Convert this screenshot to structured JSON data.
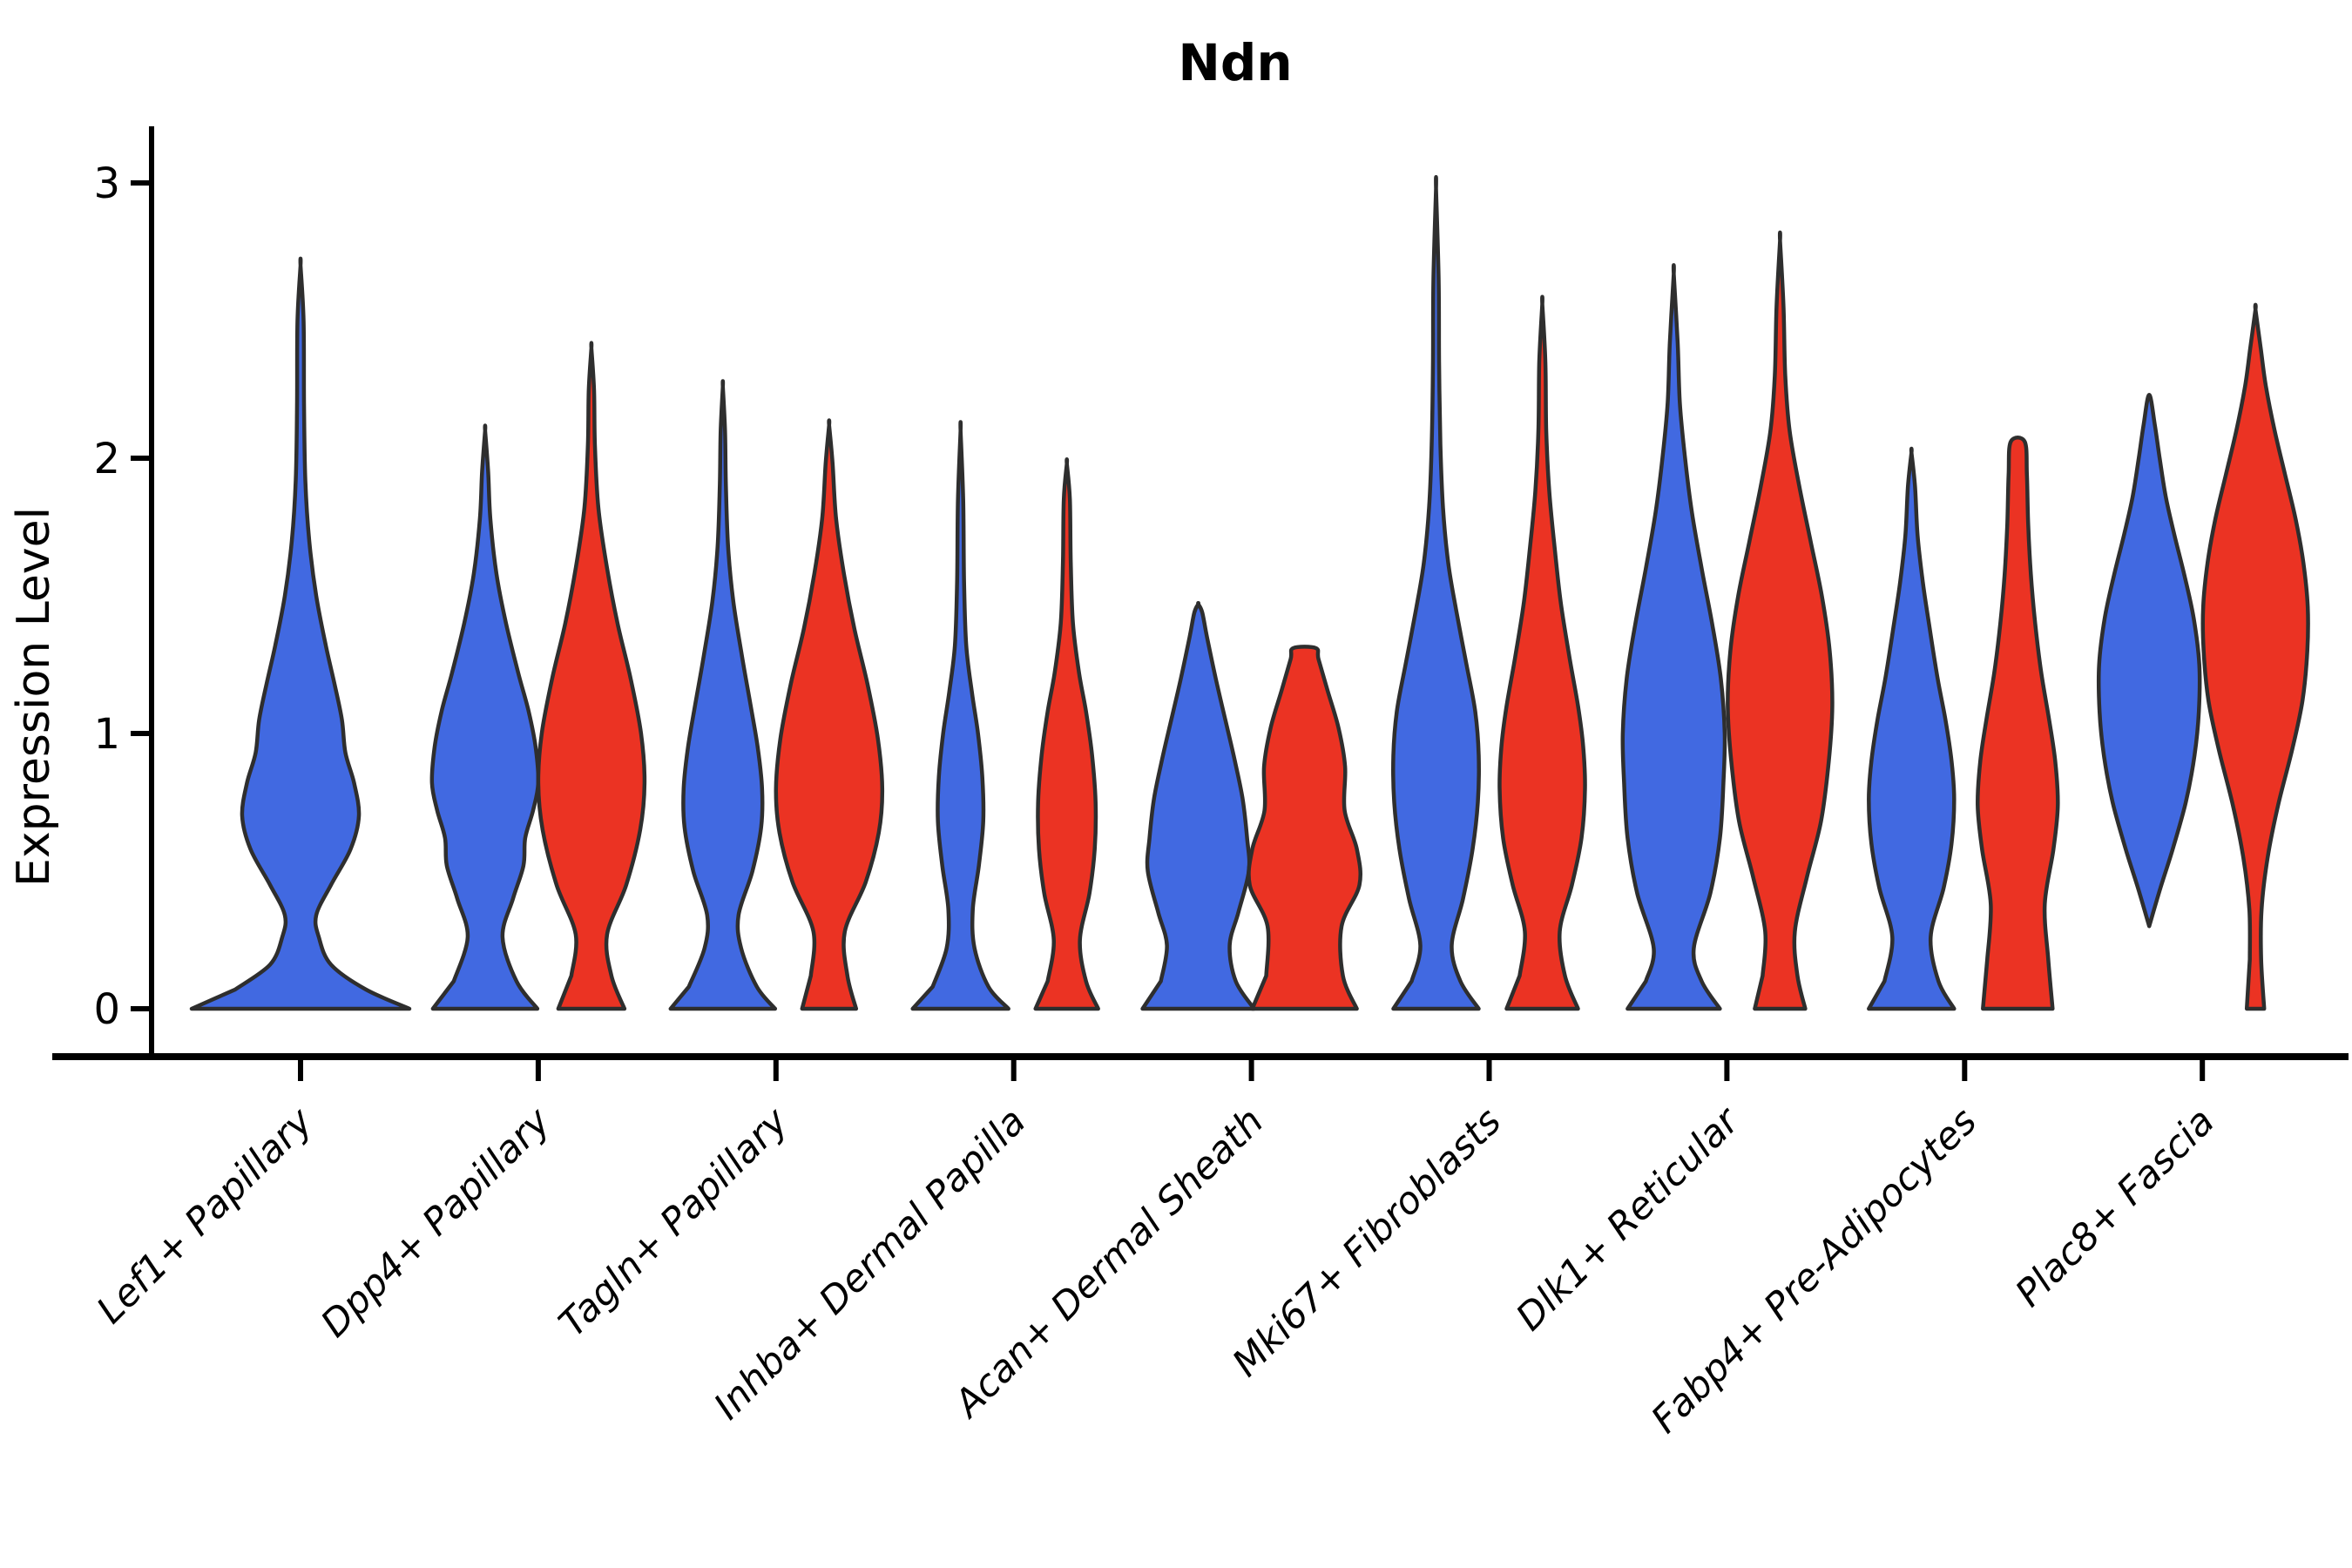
{
  "title": "Ndn",
  "y_axis": {
    "label": "Expression Level",
    "ticks": [
      {
        "value": 0,
        "label": "0"
      },
      {
        "value": 1,
        "label": "1"
      },
      {
        "value": 2,
        "label": "2"
      },
      {
        "value": 3,
        "label": "3"
      }
    ]
  },
  "colors": {
    "blue": "#4169E1",
    "red": "#EB3323",
    "outline": "#2E2E2E",
    "axis": "#000000"
  },
  "chart_data": {
    "type": "violin",
    "title": "Ndn",
    "xlabel": "",
    "ylabel": "Expression Level",
    "ylim": [
      -0.17,
      3.25
    ],
    "grid": false,
    "legend": "none",
    "split_violins": true,
    "categories": [
      "Lef1+ Papillary",
      "Dpp4+ Papillary",
      "Tagln+ Papillary",
      "Inhba+ Dermal Papilla",
      "Acan+ Dermal Sheath",
      "Mki67+ Fibroblasts",
      "Dlk1+ Reticular",
      "Fabp4+ Pre-Adipocytes",
      "Plac8+ Fascia"
    ],
    "violins": [
      {
        "category_index": 0,
        "side": "single",
        "color": "blue",
        "min_expression": 0,
        "max_expression": 2.7,
        "profile": [
          [
            0,
            250
          ],
          [
            0.07,
            150
          ],
          [
            0.16,
            70
          ],
          [
            0.26,
            42
          ],
          [
            0.34,
            36
          ],
          [
            0.45,
            70
          ],
          [
            0.58,
            115
          ],
          [
            0.7,
            134
          ],
          [
            0.82,
            123
          ],
          [
            0.93,
            103
          ],
          [
            1.05,
            95
          ],
          [
            1.18,
            78
          ],
          [
            1.32,
            58
          ],
          [
            1.5,
            36
          ],
          [
            1.7,
            20
          ],
          [
            1.92,
            11
          ],
          [
            2.2,
            8
          ],
          [
            2.5,
            7
          ],
          [
            2.7,
            0
          ]
        ]
      },
      {
        "category_index": 1,
        "side": "left",
        "color": "blue",
        "min_expression": 0,
        "max_expression": 2.1,
        "profile": [
          [
            0,
            120
          ],
          [
            0.1,
            72
          ],
          [
            0.26,
            40
          ],
          [
            0.4,
            64
          ],
          [
            0.52,
            88
          ],
          [
            0.62,
            92
          ],
          [
            0.72,
            110
          ],
          [
            0.82,
            122
          ],
          [
            0.95,
            116
          ],
          [
            1.08,
            100
          ],
          [
            1.22,
            76
          ],
          [
            1.4,
            48
          ],
          [
            1.58,
            26
          ],
          [
            1.78,
            12
          ],
          [
            1.95,
            7
          ],
          [
            2.1,
            0
          ]
        ]
      },
      {
        "category_index": 1,
        "side": "right",
        "color": "red",
        "min_expression": 0,
        "max_expression": 2.4,
        "profile": [
          [
            0,
            76
          ],
          [
            0.12,
            46
          ],
          [
            0.27,
            36
          ],
          [
            0.45,
            80
          ],
          [
            0.65,
            112
          ],
          [
            0.82,
            122
          ],
          [
            1.0,
            114
          ],
          [
            1.2,
            90
          ],
          [
            1.4,
            60
          ],
          [
            1.6,
            36
          ],
          [
            1.82,
            16
          ],
          [
            2.05,
            8
          ],
          [
            2.25,
            6
          ],
          [
            2.4,
            0
          ]
        ]
      },
      {
        "category_index": 2,
        "side": "left",
        "color": "blue",
        "min_expression": 0,
        "max_expression": 2.26,
        "profile": [
          [
            0,
            120
          ],
          [
            0.08,
            78
          ],
          [
            0.22,
            42
          ],
          [
            0.34,
            36
          ],
          [
            0.5,
            68
          ],
          [
            0.66,
            88
          ],
          [
            0.8,
            90
          ],
          [
            0.95,
            80
          ],
          [
            1.1,
            64
          ],
          [
            1.28,
            44
          ],
          [
            1.48,
            24
          ],
          [
            1.68,
            12
          ],
          [
            1.9,
            7
          ],
          [
            2.1,
            5
          ],
          [
            2.26,
            0
          ]
        ]
      },
      {
        "category_index": 2,
        "side": "right",
        "color": "red",
        "min_expression": 0,
        "max_expression": 2.12,
        "profile": [
          [
            0,
            62
          ],
          [
            0.12,
            42
          ],
          [
            0.28,
            36
          ],
          [
            0.46,
            84
          ],
          [
            0.64,
            114
          ],
          [
            0.8,
            122
          ],
          [
            0.98,
            112
          ],
          [
            1.18,
            88
          ],
          [
            1.38,
            58
          ],
          [
            1.58,
            34
          ],
          [
            1.78,
            16
          ],
          [
            1.98,
            8
          ],
          [
            2.12,
            0
          ]
        ]
      },
      {
        "category_index": 3,
        "side": "left",
        "color": "blue",
        "min_expression": 0,
        "max_expression": 2.1,
        "profile": [
          [
            0,
            110
          ],
          [
            0.08,
            64
          ],
          [
            0.22,
            32
          ],
          [
            0.36,
            28
          ],
          [
            0.52,
            42
          ],
          [
            0.68,
            52
          ],
          [
            0.84,
            50
          ],
          [
            1.0,
            40
          ],
          [
            1.15,
            26
          ],
          [
            1.32,
            13
          ],
          [
            1.55,
            8
          ],
          [
            1.85,
            6
          ],
          [
            2.1,
            0
          ]
        ]
      },
      {
        "category_index": 3,
        "side": "right",
        "color": "red",
        "min_expression": 0,
        "max_expression": 1.98,
        "profile": [
          [
            0,
            72
          ],
          [
            0.1,
            44
          ],
          [
            0.25,
            30
          ],
          [
            0.42,
            52
          ],
          [
            0.58,
            64
          ],
          [
            0.75,
            66
          ],
          [
            0.92,
            58
          ],
          [
            1.08,
            44
          ],
          [
            1.22,
            28
          ],
          [
            1.4,
            14
          ],
          [
            1.62,
            9
          ],
          [
            1.85,
            7
          ],
          [
            1.98,
            0
          ]
        ]
      },
      {
        "category_index": 4,
        "side": "left",
        "color": "blue",
        "min_expression": 0,
        "max_expression": 1.47,
        "profile": [
          [
            0,
            128
          ],
          [
            0.1,
            86
          ],
          [
            0.23,
            72
          ],
          [
            0.35,
            92
          ],
          [
            0.5,
            116
          ],
          [
            0.62,
            112
          ],
          [
            0.76,
            102
          ],
          [
            0.9,
            84
          ],
          [
            1.05,
            62
          ],
          [
            1.2,
            40
          ],
          [
            1.35,
            20
          ],
          [
            1.44,
            9
          ],
          [
            1.47,
            0
          ]
        ]
      },
      {
        "category_index": 4,
        "side": "right",
        "color": "red",
        "min_expression": 0,
        "max_expression": 1.31,
        "flat_top": true,
        "profile": [
          [
            0,
            120
          ],
          [
            0.12,
            88
          ],
          [
            0.3,
            85
          ],
          [
            0.45,
            126
          ],
          [
            0.58,
            120
          ],
          [
            0.72,
            92
          ],
          [
            0.88,
            93
          ],
          [
            1.02,
            78
          ],
          [
            1.16,
            52
          ],
          [
            1.27,
            32
          ],
          [
            1.31,
            26
          ]
        ]
      },
      {
        "category_index": 5,
        "side": "left",
        "color": "blue",
        "min_expression": 0,
        "max_expression": 2.98,
        "profile": [
          [
            0,
            98
          ],
          [
            0.1,
            56
          ],
          [
            0.23,
            36
          ],
          [
            0.4,
            62
          ],
          [
            0.58,
            84
          ],
          [
            0.75,
            96
          ],
          [
            0.92,
            98
          ],
          [
            1.08,
            90
          ],
          [
            1.25,
            70
          ],
          [
            1.45,
            46
          ],
          [
            1.62,
            28
          ],
          [
            1.82,
            16
          ],
          [
            2.05,
            10
          ],
          [
            2.35,
            7
          ],
          [
            2.65,
            6
          ],
          [
            2.98,
            0
          ]
        ]
      },
      {
        "category_index": 5,
        "side": "right",
        "color": "red",
        "min_expression": 0,
        "max_expression": 2.56,
        "profile": [
          [
            0,
            82
          ],
          [
            0.12,
            52
          ],
          [
            0.28,
            40
          ],
          [
            0.45,
            68
          ],
          [
            0.62,
            90
          ],
          [
            0.8,
            98
          ],
          [
            0.95,
            94
          ],
          [
            1.1,
            82
          ],
          [
            1.28,
            62
          ],
          [
            1.48,
            42
          ],
          [
            1.68,
            28
          ],
          [
            1.88,
            16
          ],
          [
            2.1,
            9
          ],
          [
            2.35,
            7
          ],
          [
            2.56,
            0
          ]
        ]
      },
      {
        "category_index": 6,
        "side": "left",
        "color": "blue",
        "min_expression": 0,
        "max_expression": 2.67,
        "profile": [
          [
            0,
            106
          ],
          [
            0.1,
            64
          ],
          [
            0.22,
            46
          ],
          [
            0.42,
            84
          ],
          [
            0.62,
            106
          ],
          [
            0.82,
            114
          ],
          [
            1.0,
            117
          ],
          [
            1.2,
            108
          ],
          [
            1.4,
            88
          ],
          [
            1.6,
            64
          ],
          [
            1.8,
            42
          ],
          [
            2.0,
            26
          ],
          [
            2.2,
            14
          ],
          [
            2.42,
            9
          ],
          [
            2.67,
            0
          ]
        ]
      },
      {
        "category_index": 6,
        "side": "right",
        "color": "red",
        "min_expression": 0,
        "max_expression": 2.79,
        "profile": [
          [
            0,
            58
          ],
          [
            0.12,
            40
          ],
          [
            0.28,
            34
          ],
          [
            0.48,
            62
          ],
          [
            0.68,
            94
          ],
          [
            0.9,
            112
          ],
          [
            1.1,
            120
          ],
          [
            1.3,
            114
          ],
          [
            1.5,
            96
          ],
          [
            1.7,
            70
          ],
          [
            1.9,
            44
          ],
          [
            2.1,
            22
          ],
          [
            2.3,
            12
          ],
          [
            2.55,
            8
          ],
          [
            2.79,
            0
          ]
        ]
      },
      {
        "category_index": 7,
        "side": "left",
        "color": "blue",
        "min_expression": 0,
        "max_expression": 2.02,
        "profile": [
          [
            0,
            98
          ],
          [
            0.1,
            62
          ],
          [
            0.26,
            44
          ],
          [
            0.44,
            74
          ],
          [
            0.6,
            92
          ],
          [
            0.76,
            98
          ],
          [
            0.9,
            92
          ],
          [
            1.05,
            78
          ],
          [
            1.2,
            60
          ],
          [
            1.38,
            42
          ],
          [
            1.55,
            26
          ],
          [
            1.72,
            14
          ],
          [
            1.9,
            8
          ],
          [
            2.02,
            0
          ]
        ]
      },
      {
        "category_index": 7,
        "side": "right",
        "color": "red",
        "min_expression": 0,
        "max_expression": 2.06,
        "flat_top": true,
        "profile": [
          [
            0,
            80
          ],
          [
            0.18,
            70
          ],
          [
            0.38,
            62
          ],
          [
            0.58,
            82
          ],
          [
            0.74,
            92
          ],
          [
            0.9,
            86
          ],
          [
            1.05,
            72
          ],
          [
            1.22,
            54
          ],
          [
            1.4,
            40
          ],
          [
            1.58,
            30
          ],
          [
            1.76,
            24
          ],
          [
            1.94,
            21
          ],
          [
            2.06,
            16
          ]
        ]
      },
      {
        "category_index": 8,
        "side": "left",
        "color": "blue",
        "min_expression": 0.3,
        "max_expression": 2.23,
        "profile": [
          [
            0.3,
            0
          ],
          [
            0.44,
            26
          ],
          [
            0.58,
            54
          ],
          [
            0.75,
            84
          ],
          [
            0.92,
            104
          ],
          [
            1.08,
            114
          ],
          [
            1.25,
            115
          ],
          [
            1.42,
            102
          ],
          [
            1.58,
            80
          ],
          [
            1.72,
            58
          ],
          [
            1.86,
            38
          ],
          [
            2.0,
            24
          ],
          [
            2.12,
            13
          ],
          [
            2.23,
            0
          ]
        ]
      },
      {
        "category_index": 8,
        "side": "right",
        "color": "red",
        "min_expression": 0,
        "max_expression": 2.54,
        "profile": [
          [
            0,
            20
          ],
          [
            0.18,
            13
          ],
          [
            0.36,
            14
          ],
          [
            0.55,
            28
          ],
          [
            0.74,
            52
          ],
          [
            0.94,
            84
          ],
          [
            1.12,
            108
          ],
          [
            1.3,
            119
          ],
          [
            1.46,
            120
          ],
          [
            1.62,
            110
          ],
          [
            1.78,
            92
          ],
          [
            1.94,
            68
          ],
          [
            2.1,
            44
          ],
          [
            2.26,
            24
          ],
          [
            2.4,
            12
          ],
          [
            2.54,
            0
          ]
        ]
      }
    ]
  }
}
